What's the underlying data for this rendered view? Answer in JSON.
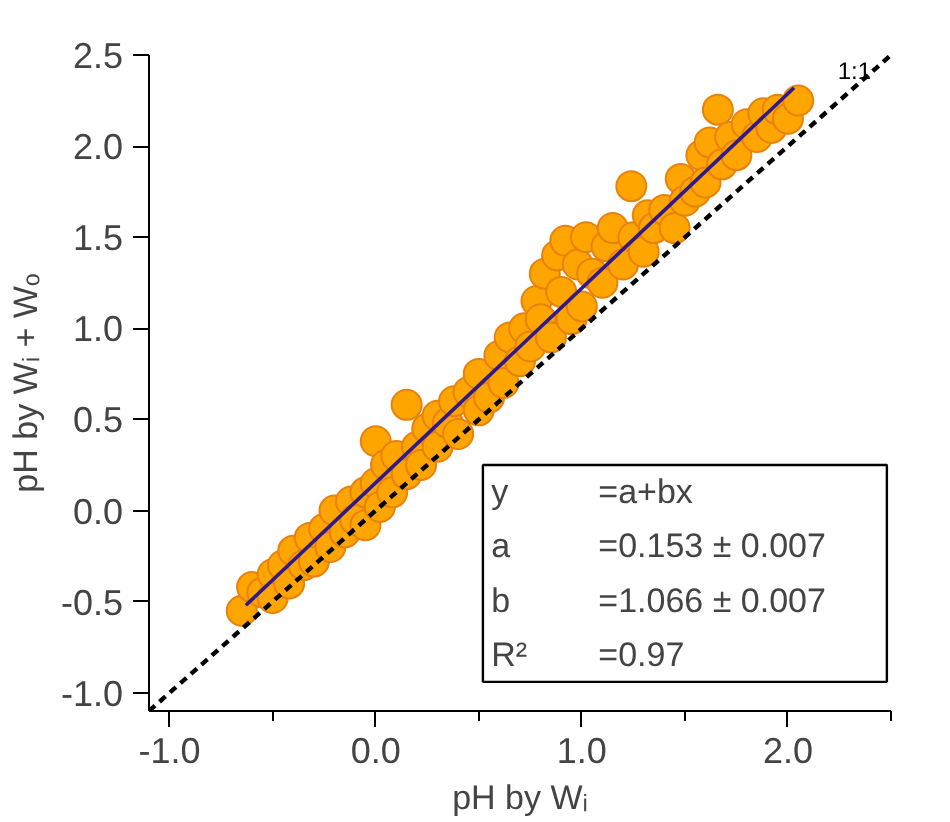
{
  "chart_data": {
    "type": "scatter",
    "xlabel": "pH by Wᵢ",
    "ylabel": "pH by Wᵢ + Wₒ",
    "xlim": [
      -1.1,
      2.5
    ],
    "ylim": [
      -1.1,
      2.5
    ],
    "xticks": [
      {
        "value": -1,
        "label": "-1.0"
      },
      {
        "value": -0.5,
        "label": null
      },
      {
        "value": 0,
        "label": "0.0"
      },
      {
        "value": 0.5,
        "label": null
      },
      {
        "value": 1,
        "label": "1.0"
      },
      {
        "value": 1.5,
        "label": null
      },
      {
        "value": 2,
        "label": "2.0"
      },
      {
        "value": 2.5,
        "label": null
      }
    ],
    "yticks": [
      {
        "value": -1,
        "label": "-1.0"
      },
      -0.5,
      {
        "value": 0,
        "label": "0.0"
      },
      0.5,
      {
        "value": 1,
        "label": "1.0"
      },
      1.5,
      {
        "value": 2,
        "label": "2.0"
      },
      2.5
    ],
    "grid": false,
    "series": [
      {
        "marker": "circle",
        "color": "#ffa500",
        "x": [
          -0.65,
          -0.6,
          -0.55,
          -0.5,
          -0.5,
          -0.45,
          -0.42,
          -0.4,
          -0.35,
          -0.32,
          -0.3,
          -0.25,
          -0.22,
          -0.2,
          -0.15,
          -0.12,
          -0.1,
          -0.05,
          -0.05,
          0.0,
          0.0,
          0.02,
          0.05,
          0.08,
          0.1,
          0.15,
          0.15,
          0.2,
          0.22,
          0.25,
          0.3,
          0.3,
          0.35,
          0.38,
          0.4,
          0.45,
          0.5,
          0.5,
          0.55,
          0.6,
          0.62,
          0.65,
          0.7,
          0.72,
          0.75,
          0.78,
          0.8,
          0.82,
          0.85,
          0.88,
          0.9,
          0.92,
          0.95,
          0.98,
          1.0,
          1.02,
          1.05,
          1.1,
          1.12,
          1.15,
          1.2,
          1.24,
          1.25,
          1.3,
          1.32,
          1.35,
          1.4,
          1.45,
          1.48,
          1.5,
          1.55,
          1.58,
          1.6,
          1.62,
          1.66,
          1.68,
          1.72,
          1.75,
          1.8,
          1.85,
          1.88,
          1.92,
          1.95,
          2.0,
          2.05
        ],
        "values": [
          -0.55,
          -0.42,
          -0.45,
          -0.35,
          -0.48,
          -0.3,
          -0.4,
          -0.22,
          -0.3,
          -0.15,
          -0.28,
          -0.1,
          -0.2,
          0.0,
          -0.12,
          0.05,
          -0.05,
          0.1,
          -0.08,
          0.38,
          0.15,
          0.02,
          0.25,
          0.1,
          0.3,
          0.58,
          0.2,
          0.35,
          0.25,
          0.45,
          0.35,
          0.52,
          0.48,
          0.6,
          0.42,
          0.65,
          0.55,
          0.75,
          0.62,
          0.85,
          0.7,
          0.95,
          0.82,
          1.0,
          0.9,
          1.15,
          1.05,
          1.3,
          0.95,
          1.4,
          1.2,
          1.48,
          1.05,
          1.35,
          1.12,
          1.5,
          1.3,
          1.25,
          1.45,
          1.55,
          1.35,
          1.78,
          1.5,
          1.42,
          1.62,
          1.55,
          1.65,
          1.55,
          1.82,
          1.7,
          1.75,
          1.95,
          1.8,
          2.02,
          2.2,
          1.9,
          2.05,
          1.95,
          2.12,
          2.05,
          2.18,
          2.1,
          2.2,
          2.15,
          2.25
        ]
      },
      {
        "type": "line",
        "name": "1:1",
        "color": "#000000",
        "line_style": "dashed",
        "x": [
          -1.1,
          2.5
        ],
        "values": [
          -1.1,
          2.5
        ]
      },
      {
        "type": "line",
        "color": "#2e1a8c",
        "line_style": "solid",
        "x": [
          -0.63,
          2.03
        ],
        "values": [
          -0.52,
          2.32
        ]
      }
    ],
    "annotations": [
      "y",
      "=a+bx",
      "a",
      "=0.153 ± 0.007",
      "b",
      "=1.066 ± 0.007",
      "R²",
      "=0.97"
    ]
  }
}
